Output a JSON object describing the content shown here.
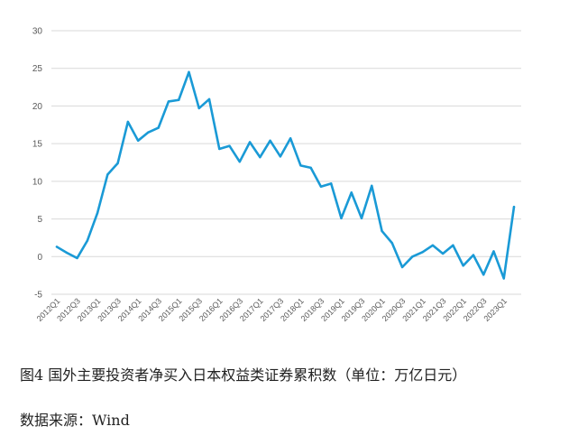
{
  "chart_data": {
    "type": "line",
    "title": "",
    "xlabel": "",
    "ylabel": "",
    "ylim": [
      -5,
      30
    ],
    "yticks": [
      -5,
      0,
      5,
      10,
      15,
      20,
      25,
      30
    ],
    "grid": true,
    "line_color": "#1a9ad6",
    "tick_labels": [
      "2012Q1",
      "2012Q3",
      "2013Q1",
      "2013Q3",
      "2014Q1",
      "2014Q3",
      "2015Q1",
      "2015Q3",
      "2016Q1",
      "2016Q3",
      "2017Q1",
      "2017Q3",
      "2018Q1",
      "2018Q3",
      "2019Q1",
      "2019Q3",
      "2020Q1",
      "2020Q3",
      "2021Q1",
      "2021Q3",
      "2022Q1",
      "2022Q3",
      "2023Q1"
    ],
    "x": [
      "2012Q1",
      "2012Q2",
      "2012Q3",
      "2012Q4",
      "2013Q1",
      "2013Q2",
      "2013Q3",
      "2013Q4",
      "2014Q1",
      "2014Q2",
      "2014Q3",
      "2014Q4",
      "2015Q1",
      "2015Q2",
      "2015Q3",
      "2015Q4",
      "2016Q1",
      "2016Q2",
      "2016Q3",
      "2016Q4",
      "2017Q1",
      "2017Q2",
      "2017Q3",
      "2017Q4",
      "2018Q1",
      "2018Q2",
      "2018Q3",
      "2018Q4",
      "2019Q1",
      "2019Q2",
      "2019Q3",
      "2019Q4",
      "2020Q1",
      "2020Q2",
      "2020Q3",
      "2020Q4",
      "2021Q1",
      "2021Q2",
      "2021Q3",
      "2021Q4",
      "2022Q1",
      "2022Q2",
      "2022Q3",
      "2022Q4",
      "2023Q1",
      "2023Q2"
    ],
    "series": [
      {
        "values": [
          1.3,
          0.5,
          -0.2,
          2.1,
          5.8,
          10.9,
          12.4,
          17.9,
          15.4,
          16.5,
          17.1,
          20.6,
          20.8,
          24.5,
          19.7,
          20.9,
          14.3,
          14.7,
          12.6,
          15.2,
          13.2,
          15.4,
          13.3,
          15.7,
          12.1,
          11.8,
          9.3,
          9.7,
          5.1,
          8.5,
          5.1,
          9.4,
          3.4,
          1.8,
          -1.4,
          0.0,
          0.6,
          1.5,
          0.4,
          1.5,
          -1.2,
          0.2,
          -2.4,
          0.7,
          -2.9,
          6.6
        ]
      }
    ]
  },
  "caption": {
    "title": "图4  国外主要投资者净买入日本权益类证券累积数（单位：万亿日元）",
    "source": "数据来源：Wind"
  }
}
